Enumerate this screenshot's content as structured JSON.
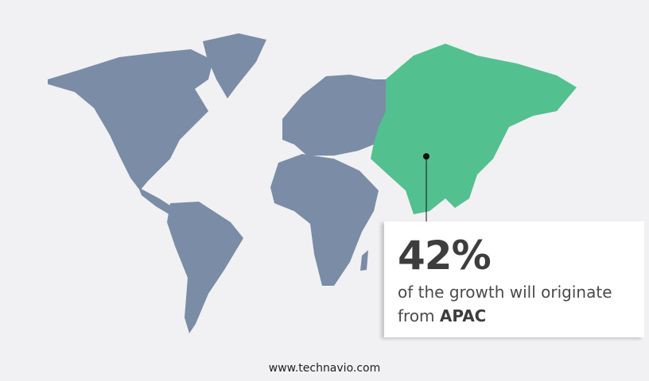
{
  "colors": {
    "background": "#f1f1f3",
    "map_land": "#7a8ca6",
    "highlight_region": "#52c08f",
    "text": "#3d3d3d"
  },
  "map": {
    "highlighted_region": "APAC"
  },
  "callout": {
    "value": "42%",
    "text": "of the growth will originate",
    "text_from": "from",
    "region": "APAC"
  },
  "footer": {
    "website": "www.technavio.com"
  }
}
